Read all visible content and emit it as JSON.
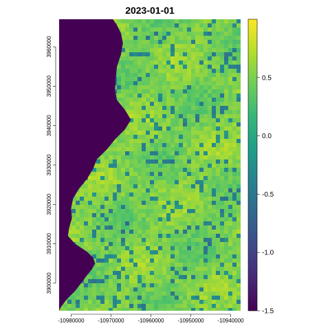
{
  "chart_data": {
    "type": "heatmap",
    "title": "2023-01-01",
    "xlabel": "",
    "ylabel": "",
    "xlim": [
      -10983000,
      -10937500
    ],
    "ylim": [
      3893000,
      3967000
    ],
    "x_ticks": [
      -10980000,
      -10970000,
      -10960000,
      -10950000,
      -10940000
    ],
    "x_tick_labels": [
      "-10980000",
      "-10970000",
      "-10960000",
      "-10950000",
      "-10940000"
    ],
    "y_ticks": [
      3900000,
      3910000,
      3920000,
      3930000,
      3940000,
      3950000,
      3960000
    ],
    "y_tick_labels": [
      "3900000",
      "3910000",
      "3920000",
      "3930000",
      "3940000",
      "3950000",
      "3960000"
    ],
    "colorbar": {
      "min": -1.5,
      "max": 1.0,
      "ticks": [
        -1.5,
        -1.0,
        -0.5,
        0.0,
        0.5
      ],
      "tick_labels": [
        "-1.5",
        "-1.0",
        "-0.5",
        "0.0",
        "0.5"
      ],
      "palette": "viridis",
      "colors": [
        "#440154",
        "#482878",
        "#3E4A89",
        "#31688E",
        "#26828E",
        "#1F9E89",
        "#35B779",
        "#6DCD59",
        "#B4DE2C",
        "#FDE725"
      ]
    },
    "grid": false,
    "legend": "right",
    "masked_region": {
      "value": -1.5,
      "side": "west",
      "boundary": [
        [
          3967000,
          -10969500
        ],
        [
          3965500,
          -10968500
        ],
        [
          3963500,
          -10967500
        ],
        [
          3961000,
          -10967000
        ],
        [
          3958000,
          -10967500
        ],
        [
          3955000,
          -10968500
        ],
        [
          3952000,
          -10968800
        ],
        [
          3949000,
          -10969000
        ],
        [
          3946500,
          -10968500
        ],
        [
          3944000,
          -10966500
        ],
        [
          3941500,
          -10965000
        ],
        [
          3939000,
          -10966500
        ],
        [
          3936500,
          -10969000
        ],
        [
          3934000,
          -10971000
        ],
        [
          3931500,
          -10973500
        ],
        [
          3929000,
          -10974500
        ],
        [
          3926500,
          -10976000
        ],
        [
          3924000,
          -10978000
        ],
        [
          3921500,
          -10979500
        ],
        [
          3919000,
          -10980000
        ],
        [
          3916500,
          -10979800
        ],
        [
          3914000,
          -10980500
        ],
        [
          3912000,
          -10980800
        ],
        [
          3910000,
          -10979000
        ],
        [
          3908000,
          -10976000
        ],
        [
          3906500,
          -10974500
        ],
        [
          3905000,
          -10974000
        ],
        [
          3903500,
          -10974800
        ],
        [
          3902000,
          -10976000
        ],
        [
          3900000,
          -10977500
        ],
        [
          3898000,
          -10979000
        ],
        [
          3896000,
          -10981000
        ],
        [
          3894000,
          -10982500
        ],
        [
          3893000,
          -10983000
        ]
      ]
    }
  }
}
